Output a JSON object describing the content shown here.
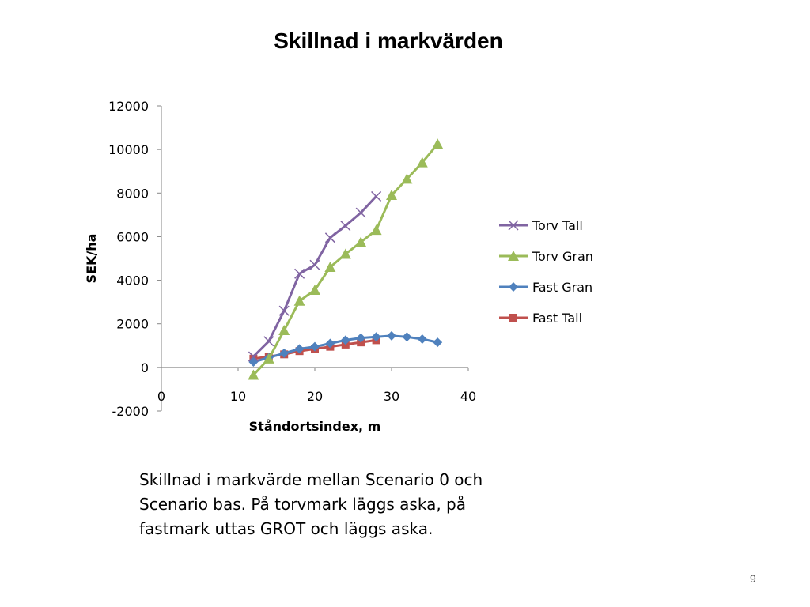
{
  "slide": {
    "title": "Skillnad i markvärden",
    "caption": "Skillnad i markvärde mellan Scenario 0 och Scenario bas. På torvmark läggs aska, på fastmark uttas GROT och läggs aska.",
    "page_number": "9"
  },
  "chart_data": {
    "type": "line",
    "title": "",
    "xlabel": "Ståndortsindex, m",
    "ylabel": "SEK/ha",
    "xlim": [
      0,
      40
    ],
    "ylim": [
      -2000,
      12000
    ],
    "x_ticks": [
      0,
      10,
      20,
      30,
      40
    ],
    "y_ticks": [
      -2000,
      0,
      2000,
      4000,
      6000,
      8000,
      10000,
      12000
    ],
    "grid": false,
    "legend_position": "right",
    "series": [
      {
        "name": "Torv Tall",
        "color": "#8064A2",
        "marker": "cross",
        "points": [
          [
            12,
            500
          ],
          [
            14,
            1200
          ],
          [
            16,
            2600
          ],
          [
            18,
            4300
          ],
          [
            20,
            4700
          ],
          [
            22,
            5950
          ],
          [
            24,
            6500
          ],
          [
            26,
            7100
          ],
          [
            28,
            7850
          ]
        ]
      },
      {
        "name": "Torv Gran",
        "color": "#9BBB59",
        "marker": "triangle",
        "points": [
          [
            12,
            -350
          ],
          [
            14,
            400
          ],
          [
            16,
            1700
          ],
          [
            18,
            3050
          ],
          [
            20,
            3550
          ],
          [
            22,
            4600
          ],
          [
            24,
            5200
          ],
          [
            26,
            5750
          ],
          [
            28,
            6300
          ],
          [
            30,
            7900
          ],
          [
            32,
            8650
          ],
          [
            34,
            9400
          ],
          [
            36,
            10250
          ]
        ]
      },
      {
        "name": "Fast Gran",
        "color": "#4F81BD",
        "marker": "diamond",
        "points": [
          [
            12,
            250
          ],
          [
            14,
            450
          ],
          [
            16,
            650
          ],
          [
            18,
            850
          ],
          [
            20,
            950
          ],
          [
            22,
            1100
          ],
          [
            24,
            1250
          ],
          [
            26,
            1350
          ],
          [
            28,
            1400
          ],
          [
            30,
            1450
          ],
          [
            32,
            1400
          ],
          [
            34,
            1300
          ],
          [
            36,
            1150
          ]
        ]
      },
      {
        "name": "Fast Tall",
        "color": "#C0504D",
        "marker": "square",
        "points": [
          [
            12,
            400
          ],
          [
            14,
            500
          ],
          [
            16,
            600
          ],
          [
            18,
            750
          ],
          [
            20,
            850
          ],
          [
            22,
            950
          ],
          [
            24,
            1050
          ],
          [
            26,
            1150
          ],
          [
            28,
            1250
          ]
        ]
      }
    ]
  }
}
